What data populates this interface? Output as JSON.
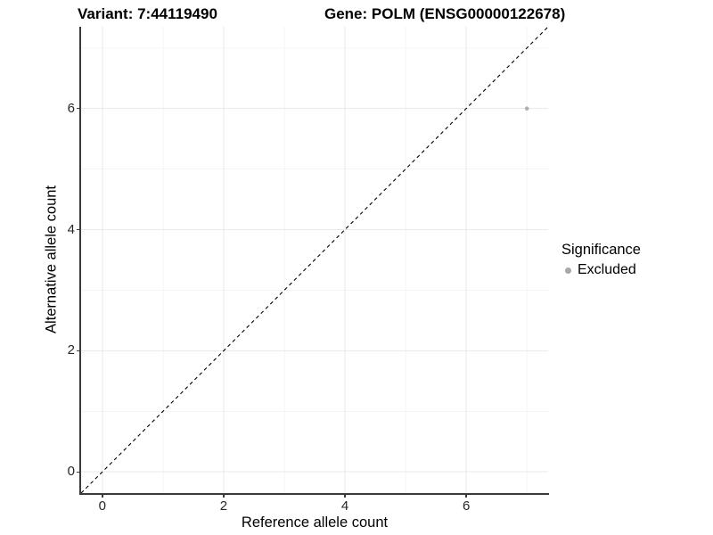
{
  "chart_data": {
    "type": "scatter",
    "title_left": "Variant: 7:44119490",
    "title_right": "Gene: POLM (ENSG00000122678)",
    "xlabel": "Reference allele count",
    "ylabel": "Alternative allele count",
    "xlim": [
      -0.35,
      7.35
    ],
    "ylim": [
      -0.35,
      7.35
    ],
    "x_major_ticks": [
      0,
      2,
      4,
      6
    ],
    "x_minor_ticks": [
      1,
      3,
      5,
      7
    ],
    "y_major_ticks": [
      0,
      2,
      4,
      6
    ],
    "y_minor_ticks": [
      1,
      3,
      5,
      7
    ],
    "x_tick_labels": [
      "0",
      "2",
      "4",
      "6"
    ],
    "y_tick_labels": [
      "0",
      "2",
      "4",
      "6"
    ],
    "grid": true,
    "identity_line": {
      "style": "dashed",
      "x1": -0.35,
      "y1": -0.35,
      "x2": 7.35,
      "y2": 7.35,
      "color": "#000000"
    },
    "series": [
      {
        "name": "Excluded",
        "color": "#b0b0b0",
        "points": [
          {
            "x": 7,
            "y": 6
          }
        ]
      }
    ],
    "legend": {
      "title": "Significance",
      "position": "right",
      "entries": [
        {
          "label": "Excluded",
          "color": "#a8a8a8"
        }
      ]
    },
    "colors": {
      "grid_major": "#e9e9e9",
      "grid_minor": "#f4f4f4",
      "axis_line": "#3a3a3a",
      "tick_text": "#262626",
      "background": "#ffffff"
    }
  }
}
